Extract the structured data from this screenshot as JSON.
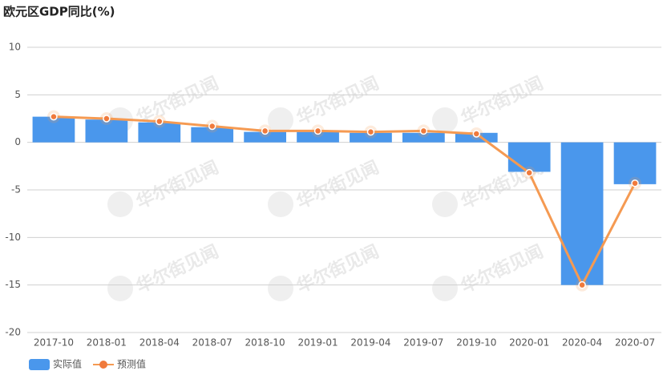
{
  "chart_data": {
    "type": "combo",
    "title": "欧元区GDP同比(%)",
    "watermark": "华尔街见闻",
    "categories": [
      "2017-10",
      "2018-01",
      "2018-04",
      "2018-07",
      "2018-10",
      "2019-01",
      "2019-04",
      "2019-07",
      "2019-10",
      "2020-01",
      "2020-04",
      "2020-07"
    ],
    "series": [
      {
        "name": "实际值",
        "type": "bar",
        "color": "#4a97ec",
        "values": [
          2.7,
          2.4,
          2.1,
          1.6,
          1.1,
          1.1,
          1.0,
          1.0,
          1.0,
          -3.1,
          -15.0,
          -4.4
        ]
      },
      {
        "name": "预测值",
        "type": "line",
        "color": "#f59a52",
        "values": [
          2.7,
          2.5,
          2.2,
          1.7,
          1.2,
          1.2,
          1.1,
          1.2,
          0.9,
          -3.2,
          -15.0,
          -4.3
        ]
      }
    ],
    "ylim": [
      -20,
      10
    ],
    "yticks": [
      -20,
      -15,
      -10,
      -5,
      0,
      5,
      10
    ],
    "grid": true
  }
}
